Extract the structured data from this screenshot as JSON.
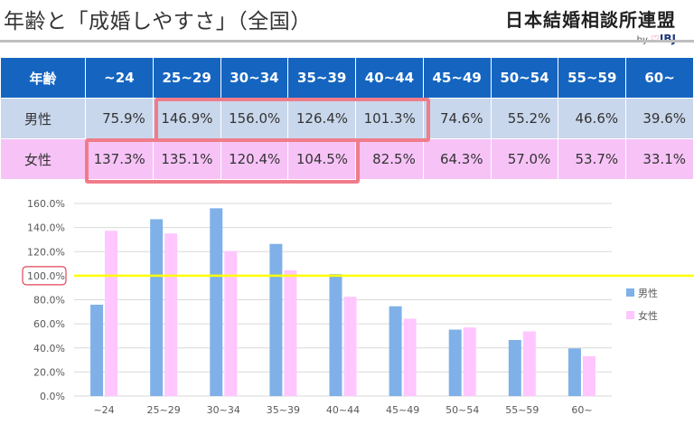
{
  "title": "年齢と「成婚しやすさ」（全国）",
  "logo": {
    "name": "日本結婚相談所連盟",
    "by": "by",
    "brand": "IBJ"
  },
  "table": {
    "header_label": "年齢",
    "age_groups": [
      "~24",
      "25~29",
      "30~34",
      "35~39",
      "40~44",
      "45~49",
      "50~54",
      "55~59",
      "60~"
    ],
    "rows": [
      {
        "label": "男性",
        "values": [
          "75.9%",
          "146.9%",
          "156.0%",
          "126.4%",
          "101.3%",
          "74.6%",
          "55.2%",
          "46.6%",
          "39.6%"
        ]
      },
      {
        "label": "女性",
        "values": [
          "137.3%",
          "135.1%",
          "120.4%",
          "104.5%",
          "82.5%",
          "64.3%",
          "57.0%",
          "53.7%",
          "33.1%"
        ]
      }
    ]
  },
  "colors": {
    "header_bg": "#1565c0",
    "male_row_bg": "#c9d7ec",
    "female_row_bg": "#f7c3f7",
    "highlight_border": "#f07c8a",
    "male_bar": "#7fb1e8",
    "female_bar": "#ffc6ff",
    "reference_line": "#ffff00"
  },
  "chart_data": {
    "type": "bar",
    "categories": [
      "~24",
      "25~29",
      "30~34",
      "35~39",
      "40~44",
      "45~49",
      "50~54",
      "55~59",
      "60~"
    ],
    "series": [
      {
        "name": "男性",
        "values": [
          75.9,
          146.9,
          156.0,
          126.4,
          101.3,
          74.6,
          55.2,
          46.6,
          39.6
        ]
      },
      {
        "name": "女性",
        "values": [
          137.3,
          135.1,
          120.4,
          104.5,
          82.5,
          64.3,
          57.0,
          53.7,
          33.1
        ]
      }
    ],
    "ylim": [
      0,
      160
    ],
    "ytick_labels": [
      "0.0%",
      "20.0%",
      "40.0%",
      "60.0%",
      "80.0%",
      "100.0%",
      "120.0%",
      "140.0%",
      "160.0%"
    ],
    "reference_value": 100,
    "reference_label": "100.0%",
    "grid": true,
    "legend_position": "right"
  }
}
